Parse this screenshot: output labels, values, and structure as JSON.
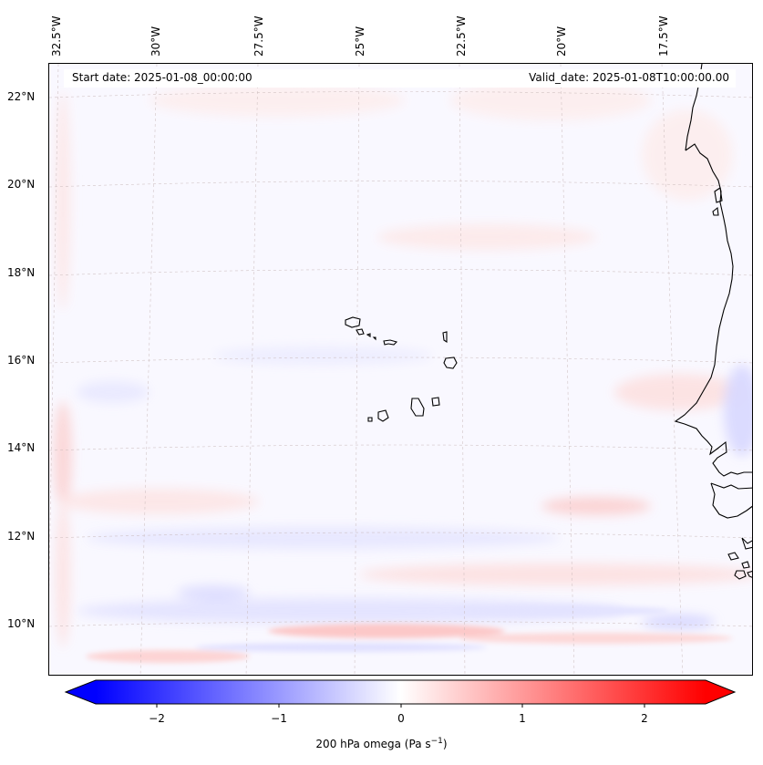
{
  "map": {
    "start_date": "Start date: 2025-01-08_00:00:00",
    "valid_date": "Valid_date: 2025-01-08T10:00:00.00",
    "lon_labels": [
      "32.5°W",
      "30°W",
      "27.5°W",
      "25°W",
      "22.5°W",
      "20°W",
      "17.5°W"
    ],
    "lat_labels": [
      "22°N",
      "20°N",
      "18°N",
      "16°N",
      "14°N",
      "12°N",
      "10°N"
    ]
  },
  "colorbar": {
    "label_prefix": "200 hPa omega (Pa s",
    "label_exp": "−1",
    "label_suffix": ")",
    "ticks": [
      "−2",
      "−1",
      "0",
      "1",
      "2"
    ],
    "min_color": "#0000ff",
    "mid_color": "#ffffff",
    "max_color": "#ff0000"
  }
}
